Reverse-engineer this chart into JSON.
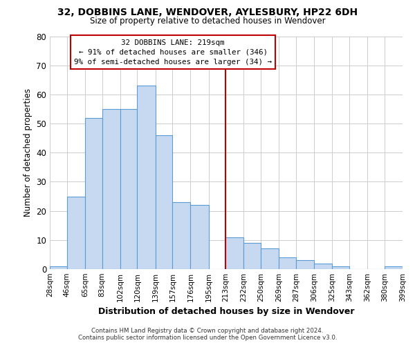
{
  "title": "32, DOBBINS LANE, WENDOVER, AYLESBURY, HP22 6DH",
  "subtitle": "Size of property relative to detached houses in Wendover",
  "xlabel": "Distribution of detached houses by size in Wendover",
  "ylabel": "Number of detached properties",
  "bin_labels": [
    "28sqm",
    "46sqm",
    "65sqm",
    "83sqm",
    "102sqm",
    "120sqm",
    "139sqm",
    "157sqm",
    "176sqm",
    "195sqm",
    "213sqm",
    "232sqm",
    "250sqm",
    "269sqm",
    "287sqm",
    "306sqm",
    "325sqm",
    "343sqm",
    "362sqm",
    "380sqm",
    "399sqm"
  ],
  "bar_values": [
    1,
    25,
    52,
    55,
    55,
    63,
    46,
    23,
    22,
    0,
    11,
    9,
    7,
    4,
    3,
    2,
    1,
    0,
    0,
    1
  ],
  "bin_edges": [
    28,
    46,
    65,
    83,
    102,
    120,
    139,
    157,
    176,
    195,
    213,
    232,
    250,
    269,
    287,
    306,
    325,
    343,
    362,
    380,
    399
  ],
  "bar_color": "#c6d9f0",
  "bar_edge_color": "#5b9bd5",
  "property_line_x": 213,
  "property_line_color": "#c00000",
  "annotation_title": "32 DOBBINS LANE: 219sqm",
  "annotation_line1": "← 91% of detached houses are smaller (346)",
  "annotation_line2": "9% of semi-detached houses are larger (34) →",
  "annotation_box_color": "#ffffff",
  "annotation_box_edge_color": "#c00000",
  "ylim": [
    0,
    80
  ],
  "yticks": [
    0,
    10,
    20,
    30,
    40,
    50,
    60,
    70,
    80
  ],
  "footer_line1": "Contains HM Land Registry data © Crown copyright and database right 2024.",
  "footer_line2": "Contains public sector information licensed under the Open Government Licence v3.0.",
  "background_color": "#ffffff",
  "grid_color": "#cccccc"
}
